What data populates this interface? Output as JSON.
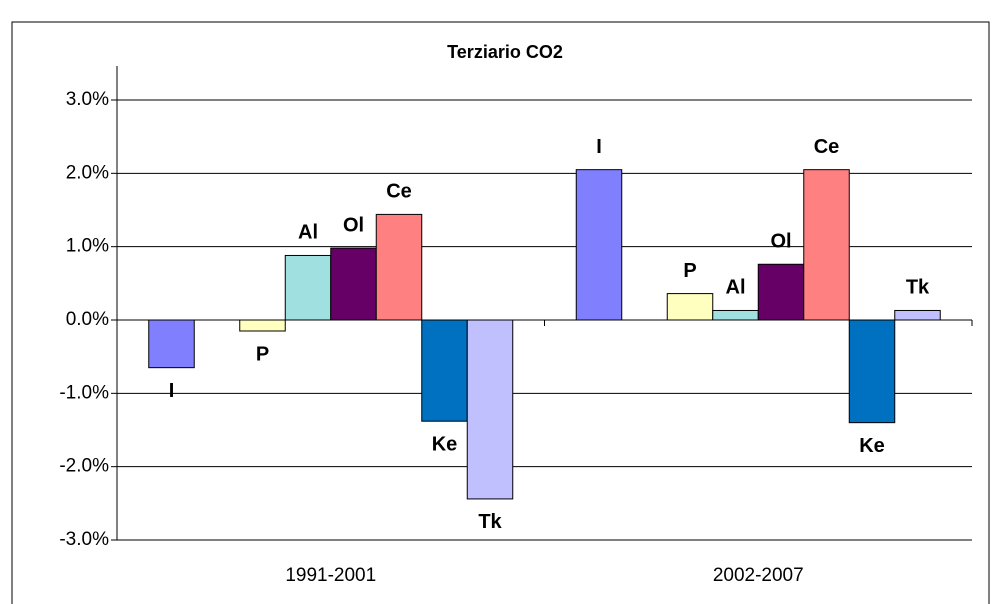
{
  "chart_data": {
    "type": "bar",
    "title": "Terziario  CO2",
    "categories": [
      "1991-2001",
      "2002-2007"
    ],
    "series": [
      {
        "name": "I",
        "color": "#8080ff",
        "values": [
          -0.65,
          2.05
        ]
      },
      {
        "name": "P",
        "color": "#ffffc0",
        "values": [
          -0.15,
          0.36
        ]
      },
      {
        "name": "Al",
        "color": "#a0e0e0",
        "values": [
          0.88,
          0.13
        ]
      },
      {
        "name": "Ol",
        "color": "#660066",
        "values": [
          0.98,
          0.76
        ]
      },
      {
        "name": "Ce",
        "color": "#ff8080",
        "values": [
          1.44,
          2.05
        ]
      },
      {
        "name": "Ke",
        "color": "#0070c0",
        "values": [
          -1.38,
          -1.4
        ]
      },
      {
        "name": "Tk",
        "color": "#c0c0ff",
        "values": [
          -2.44,
          0.13
        ]
      }
    ],
    "ylim": [
      -3,
      3
    ],
    "yticks": [
      {
        "value": -3,
        "label": "-3.0%"
      },
      {
        "value": -2,
        "label": "-2.0%"
      },
      {
        "value": -1,
        "label": "-1.0%"
      },
      {
        "value": 0,
        "label": "0.0%"
      },
      {
        "value": 1,
        "label": "1.0%"
      },
      {
        "value": 2,
        "label": "2.0%"
      },
      {
        "value": 3,
        "label": "3.0%"
      }
    ],
    "grid": true
  }
}
